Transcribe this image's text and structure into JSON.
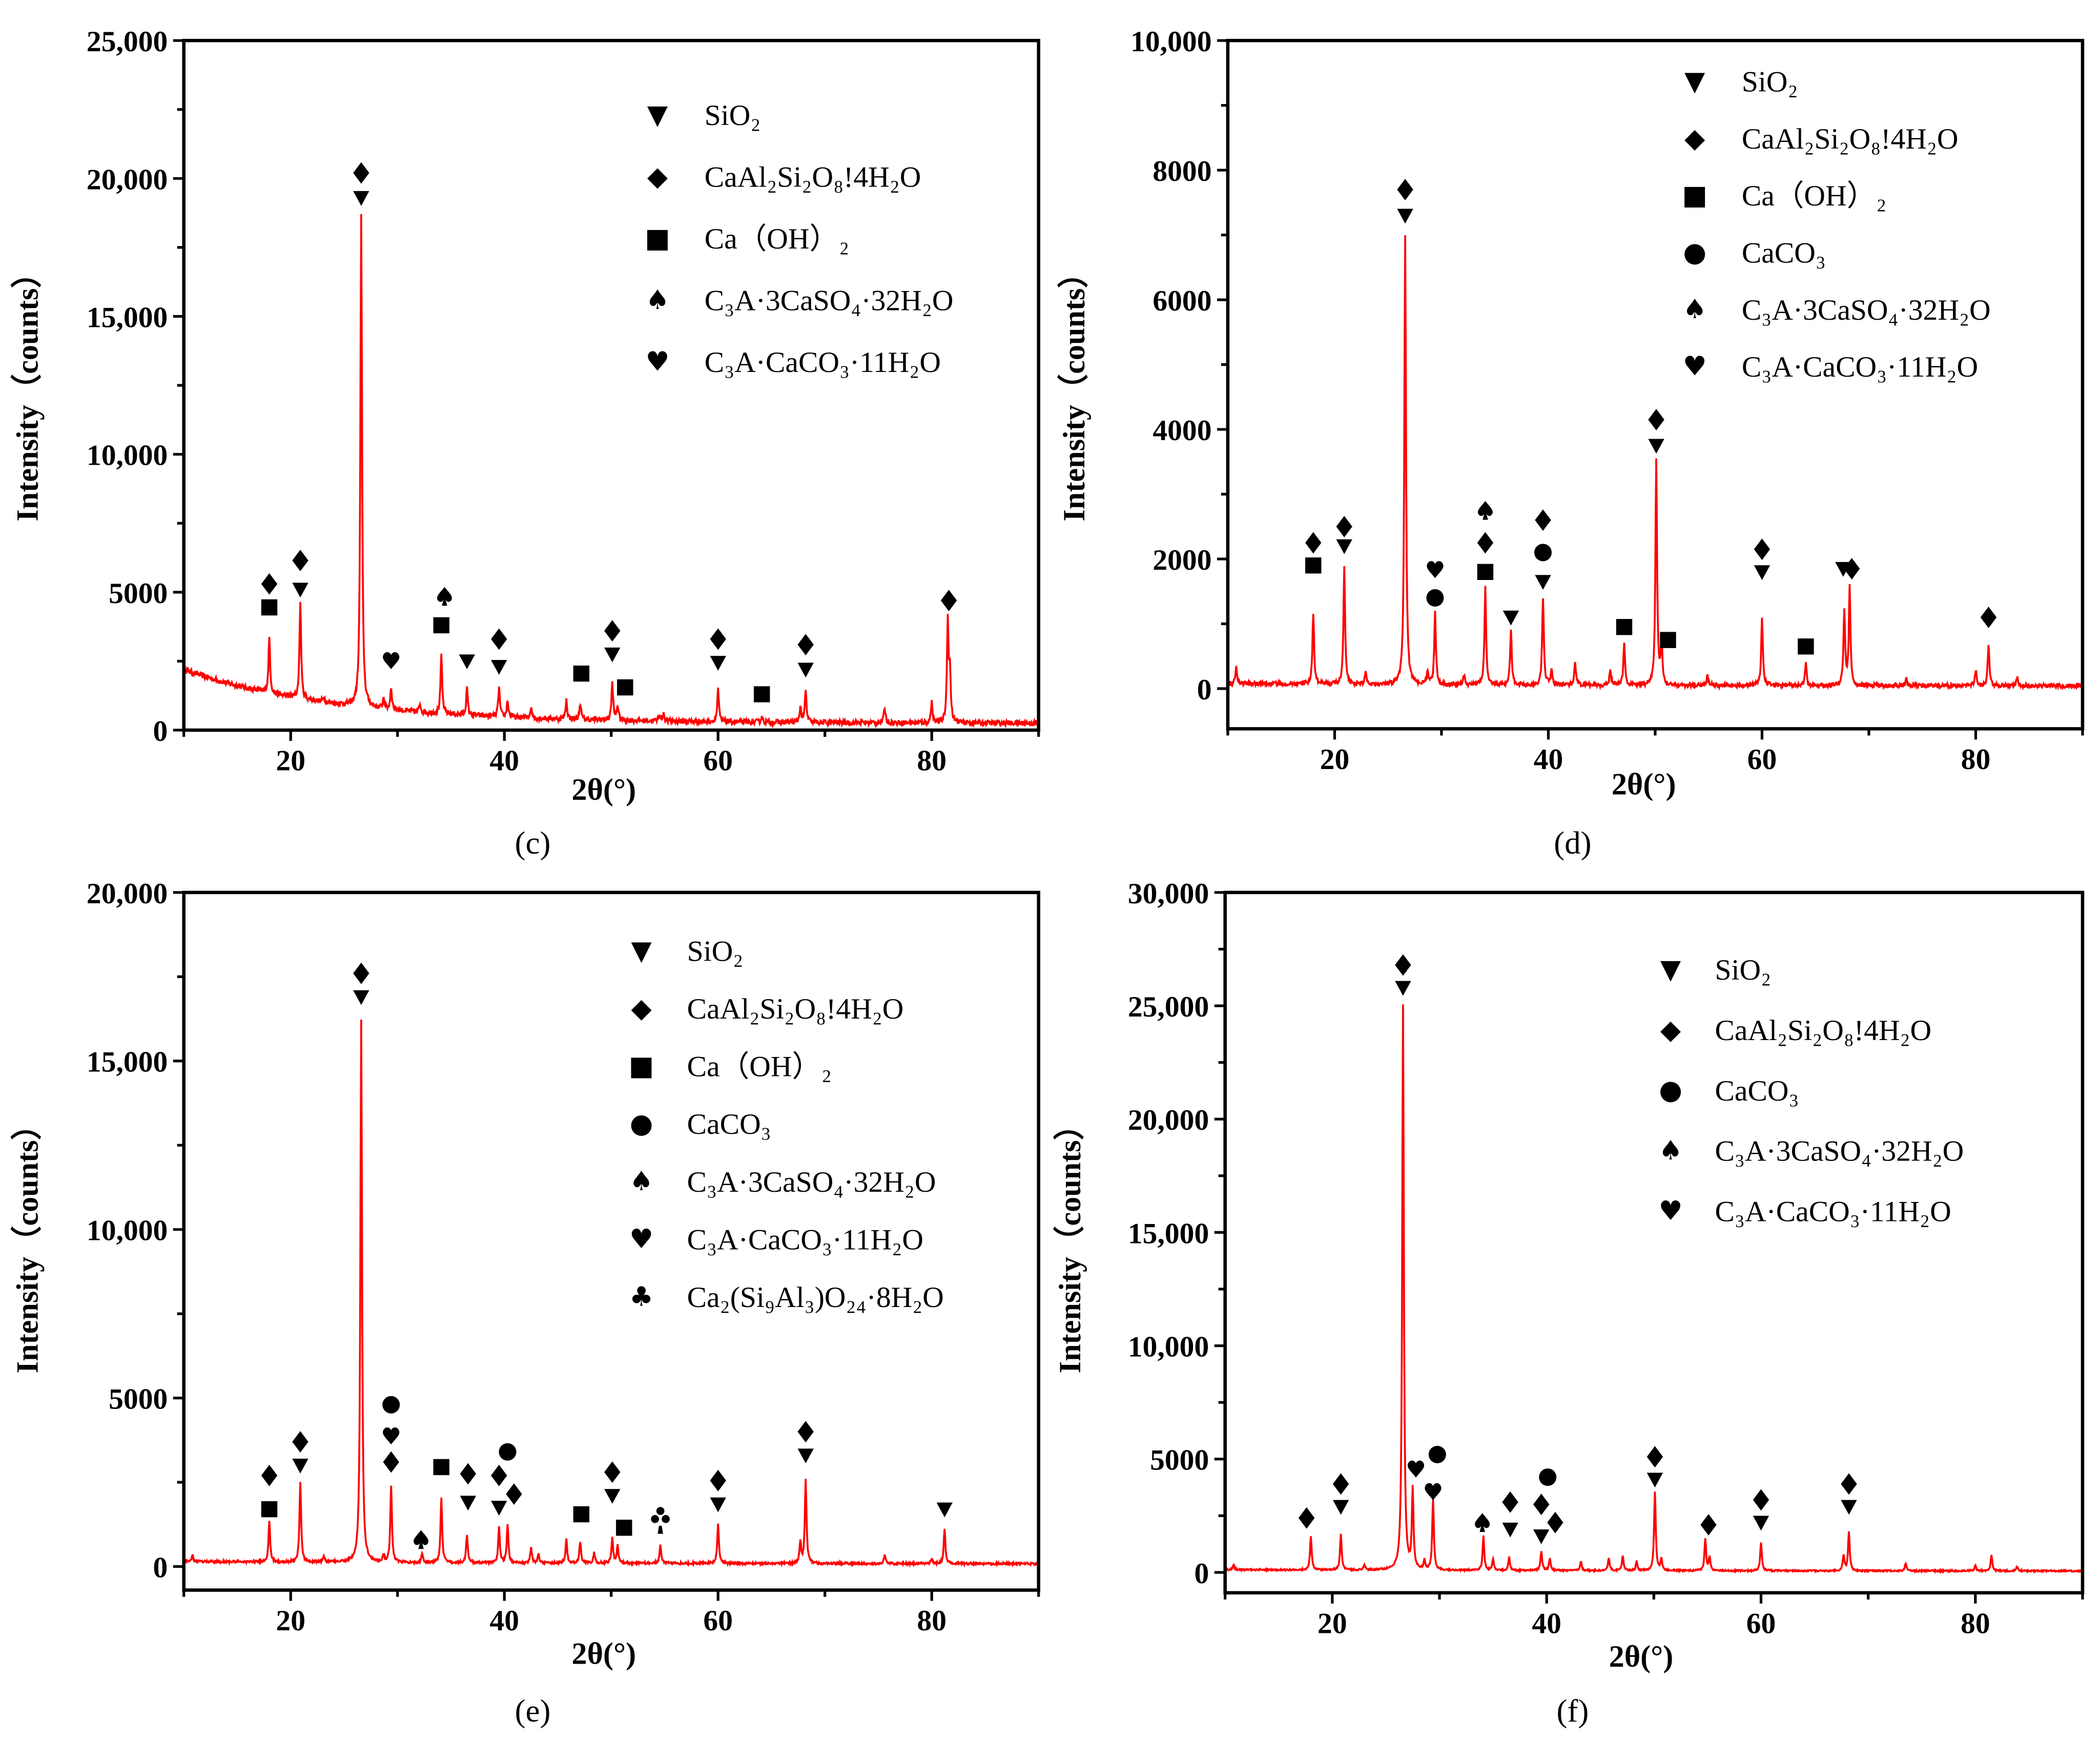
{
  "colors": {
    "line": "#ff0000",
    "axis": "#000000",
    "marker": "#000000"
  },
  "symbols": {
    "SiO2": "▼",
    "anorthite": "◆",
    "CaOH2": "■",
    "CaCO3": "●",
    "ettringite": "♠",
    "carboaluminate": "♥",
    "zeolite": "♣"
  },
  "chart_data": [
    {
      "type": "line",
      "panel_label": "(c)",
      "xlabel": "2θ(°)",
      "ylabel": "Intensity（counts）",
      "xlim": [
        10,
        90
      ],
      "ylim": [
        0,
        25000
      ],
      "xticks": [
        20,
        40,
        60,
        80
      ],
      "yticks": [
        0,
        5000,
        10000,
        15000,
        20000,
        25000
      ],
      "ytick_labels": [
        "0",
        "5000",
        "10,000",
        "15,000",
        "20,000",
        "25,000"
      ],
      "xtick_labels": [
        "20",
        "40",
        "60",
        "80"
      ],
      "baseline": {
        "start": 2200,
        "end": 250,
        "decay": 14
      },
      "peaks": [
        [
          18.0,
          2000
        ],
        [
          20.9,
          3500
        ],
        [
          23.1,
          200
        ],
        [
          26.6,
          17800
        ],
        [
          28.7,
          400
        ],
        [
          29.4,
          800
        ],
        [
          32.1,
          300
        ],
        [
          34.1,
          2100
        ],
        [
          36.5,
          950
        ],
        [
          39.5,
          1050
        ],
        [
          40.3,
          600
        ],
        [
          42.5,
          400
        ],
        [
          45.8,
          700
        ],
        [
          47.1,
          600
        ],
        [
          50.1,
          1350
        ],
        [
          50.6,
          550
        ],
        [
          54.5,
          250
        ],
        [
          54.9,
          300
        ],
        [
          60.0,
          1150
        ],
        [
          64.1,
          200
        ],
        [
          67.7,
          550
        ],
        [
          68.2,
          1150
        ],
        [
          75.6,
          550
        ],
        [
          80.0,
          750
        ],
        [
          81.5,
          3650
        ],
        [
          81.7,
          1700
        ]
      ],
      "legend": [
        {
          "symbol": "SiO2",
          "label": "SiO₂"
        },
        {
          "symbol": "anorthite",
          "label": "CaAl₂Si₂O₈!4H₂O"
        },
        {
          "symbol": "CaOH2",
          "label": "Ca（OH）₂"
        },
        {
          "symbol": "ettringite",
          "label": "C₃A·3CaSO₄·32H₂O"
        },
        {
          "symbol": "carboaluminate",
          "label": "C₃A·CaCO₃·11H₂O"
        }
      ],
      "markers": [
        [
          "anorthite",
          18,
          5300
        ],
        [
          "CaOH2",
          18,
          4450
        ],
        [
          "anorthite",
          20.9,
          6150
        ],
        [
          "SiO2",
          20.9,
          5100
        ],
        [
          "anorthite",
          26.6,
          20200
        ],
        [
          "SiO2",
          26.6,
          19300
        ],
        [
          "carboaluminate",
          29.4,
          2550
        ],
        [
          "CaOH2",
          34.1,
          3800
        ],
        [
          "ettringite",
          34.4,
          4850
        ],
        [
          "SiO2",
          36.5,
          2500
        ],
        [
          "anorthite",
          39.5,
          3300
        ],
        [
          "SiO2",
          39.5,
          2300
        ],
        [
          "CaOH2",
          47.2,
          2050
        ],
        [
          "CaOH2",
          51.3,
          1550
        ],
        [
          "anorthite",
          50.1,
          3600
        ],
        [
          "SiO2",
          50.1,
          2750
        ],
        [
          "anorthite",
          60.0,
          3300
        ],
        [
          "SiO2",
          60.0,
          2450
        ],
        [
          "CaOH2",
          64.1,
          1300
        ],
        [
          "anorthite",
          68.2,
          3100
        ],
        [
          "SiO2",
          68.2,
          2200
        ],
        [
          "anorthite",
          81.6,
          4700
        ]
      ]
    },
    {
      "type": "line",
      "panel_label": "(d)",
      "xlabel": "2θ(°)",
      "ylabel": "Intensity（counts）",
      "xlim": [
        10,
        90
      ],
      "ylim": [
        -620,
        10000
      ],
      "xticks": [
        20,
        40,
        60,
        80
      ],
      "yticks": [
        0,
        2000,
        4000,
        6000,
        8000,
        10000
      ],
      "ytick_labels": [
        "0",
        "2000",
        "4000",
        "6000",
        "8000",
        "10,000"
      ],
      "xtick_labels": [
        "20",
        "40",
        "60",
        "80"
      ],
      "baseline": {
        "start": 80,
        "end": 40,
        "decay": 30
      },
      "peaks": [
        [
          10.8,
          250
        ],
        [
          18.0,
          1100
        ],
        [
          20.9,
          1800
        ],
        [
          22.9,
          200
        ],
        [
          26.6,
          6950
        ],
        [
          28.7,
          200
        ],
        [
          29.4,
          1100
        ],
        [
          32.1,
          150
        ],
        [
          34.1,
          1500
        ],
        [
          36.5,
          850
        ],
        [
          39.5,
          1350
        ],
        [
          40.3,
          250
        ],
        [
          42.5,
          350
        ],
        [
          45.8,
          250
        ],
        [
          47.1,
          650
        ],
        [
          50.1,
          3500
        ],
        [
          50.6,
          650
        ],
        [
          54.9,
          150
        ],
        [
          60.0,
          1050
        ],
        [
          64.1,
          350
        ],
        [
          67.7,
          1150
        ],
        [
          68.2,
          1500
        ],
        [
          73.5,
          100
        ],
        [
          80.0,
          250
        ],
        [
          81.2,
          650
        ],
        [
          83.9,
          150
        ]
      ],
      "legend": [
        {
          "symbol": "SiO2",
          "label": "SiO₂"
        },
        {
          "symbol": "anorthite",
          "label": "CaAl₂Si₂O₈!4H₂O"
        },
        {
          "symbol": "CaOH2",
          "label": "Ca（OH）₂"
        },
        {
          "symbol": "CaCO3",
          "label": "CaCO₃"
        },
        {
          "symbol": "ettringite",
          "label": "C₃A·3CaSO₄·32H₂O"
        },
        {
          "symbol": "carboaluminate",
          "label": "C₃A·CaCO₃·11H₂O"
        }
      ],
      "markers": [
        [
          "anorthite",
          18,
          2250
        ],
        [
          "CaOH2",
          18,
          1900
        ],
        [
          "anorthite",
          20.9,
          2500
        ],
        [
          "SiO2",
          20.9,
          2200
        ],
        [
          "anorthite",
          26.6,
          7700
        ],
        [
          "SiO2",
          26.6,
          7300
        ],
        [
          "carboaluminate",
          29.4,
          1850
        ],
        [
          "CaCO3",
          29.4,
          1400
        ],
        [
          "ettringite",
          34.1,
          2750
        ],
        [
          "anorthite",
          34.1,
          2250
        ],
        [
          "CaOH2",
          34.1,
          1800
        ],
        [
          "SiO2",
          36.5,
          1100
        ],
        [
          "anorthite",
          39.5,
          2600
        ],
        [
          "CaCO3",
          39.5,
          2100
        ],
        [
          "SiO2",
          39.5,
          1650
        ],
        [
          "CaOH2",
          47.1,
          950
        ],
        [
          "CaOH2",
          51.2,
          750
        ],
        [
          "anorthite",
          50.1,
          4150
        ],
        [
          "SiO2",
          50.1,
          3750
        ],
        [
          "anorthite",
          60.0,
          2150
        ],
        [
          "SiO2",
          60.0,
          1800
        ],
        [
          "CaOH2",
          64.1,
          650
        ],
        [
          "SiO2",
          67.6,
          1850
        ],
        [
          "anorthite",
          68.4,
          1850
        ],
        [
          "anorthite",
          81.2,
          1100
        ]
      ]
    },
    {
      "type": "line",
      "panel_label": "(e)",
      "xlabel": "2θ(°)",
      "ylabel": "Intensity（counts）",
      "xlim": [
        10,
        90
      ],
      "ylim": [
        -700,
        20000
      ],
      "xticks": [
        20,
        40,
        60,
        80
      ],
      "yticks": [
        0,
        5000,
        10000,
        15000,
        20000
      ],
      "ytick_labels": [
        "0",
        "5000",
        "10,000",
        "15,000",
        "20,000"
      ],
      "xtick_labels": [
        "20",
        "40",
        "60",
        "80"
      ],
      "baseline": {
        "start": 150,
        "end": 80,
        "decay": 30
      },
      "peaks": [
        [
          10.8,
          200
        ],
        [
          18.0,
          1200
        ],
        [
          20.9,
          2400
        ],
        [
          23.1,
          200
        ],
        [
          26.6,
          16100
        ],
        [
          28.7,
          200
        ],
        [
          29.4,
          2250
        ],
        [
          32.3,
          250
        ],
        [
          34.1,
          1900
        ],
        [
          36.5,
          850
        ],
        [
          39.5,
          1050
        ],
        [
          40.3,
          1150
        ],
        [
          42.5,
          450
        ],
        [
          43.2,
          250
        ],
        [
          45.8,
          700
        ],
        [
          47.1,
          650
        ],
        [
          48.4,
          300
        ],
        [
          50.1,
          750
        ],
        [
          50.6,
          550
        ],
        [
          54.6,
          550
        ],
        [
          60.0,
          1150
        ],
        [
          67.7,
          650
        ],
        [
          68.2,
          2500
        ],
        [
          75.6,
          250
        ],
        [
          80.0,
          150
        ],
        [
          81.2,
          1050
        ]
      ],
      "legend": [
        {
          "symbol": "SiO2",
          "label": "SiO₂"
        },
        {
          "symbol": "anorthite",
          "label": "CaAl₂Si₂O₈!4H₂O"
        },
        {
          "symbol": "CaOH2",
          "label": "Ca（OH）₂"
        },
        {
          "symbol": "CaCO3",
          "label": "CaCO₃"
        },
        {
          "symbol": "ettringite",
          "label": "C₃A·3CaSO₄·32H₂O"
        },
        {
          "symbol": "carboaluminate",
          "label": "C₃A·CaCO₃·11H₂O"
        },
        {
          "symbol": "zeolite",
          "label": "Ca₂(Si₉Al₃)O₂₄·8H₂O"
        }
      ],
      "markers": [
        [
          "anorthite",
          18,
          2700
        ],
        [
          "CaOH2",
          18,
          1700
        ],
        [
          "anorthite",
          20.9,
          3700
        ],
        [
          "SiO2",
          20.9,
          3000
        ],
        [
          "anorthite",
          26.6,
          17600
        ],
        [
          "SiO2",
          26.6,
          16900
        ],
        [
          "CaCO3",
          29.4,
          4800
        ],
        [
          "carboaluminate",
          29.4,
          3900
        ],
        [
          "anorthite",
          29.4,
          3100
        ],
        [
          "ettringite",
          32.2,
          800
        ],
        [
          "CaOH2",
          34.1,
          2950
        ],
        [
          "anorthite",
          36.6,
          2750
        ],
        [
          "SiO2",
          36.6,
          1900
        ],
        [
          "anorthite",
          39.5,
          2700
        ],
        [
          "SiO2",
          39.5,
          1750
        ],
        [
          "CaCO3",
          40.3,
          3400
        ],
        [
          "anorthite",
          40.9,
          2150
        ],
        [
          "CaOH2",
          47.2,
          1550
        ],
        [
          "CaOH2",
          51.2,
          1150
        ],
        [
          "anorthite",
          50.1,
          2800
        ],
        [
          "SiO2",
          50.1,
          2100
        ],
        [
          "zeolite",
          54.6,
          1250
        ],
        [
          "anorthite",
          60.0,
          2550
        ],
        [
          "SiO2",
          60.0,
          1850
        ],
        [
          "anorthite",
          68.2,
          4000
        ],
        [
          "SiO2",
          68.2,
          3300
        ],
        [
          "SiO2",
          81.2,
          1700
        ]
      ]
    },
    {
      "type": "line",
      "panel_label": "(f)",
      "xlabel": "2θ(°)",
      "ylabel": "Intensity（counts）",
      "xlim": [
        10,
        90
      ],
      "ylim": [
        -900,
        30000
      ],
      "xticks": [
        20,
        40,
        60,
        80
      ],
      "yticks": [
        0,
        5000,
        10000,
        15000,
        20000,
        25000,
        30000
      ],
      "ytick_labels": [
        "0",
        "5000",
        "10,000",
        "15,000",
        "20,000",
        "25,000",
        "30,000"
      ],
      "xtick_labels": [
        "20",
        "40",
        "60",
        "80"
      ],
      "baseline": {
        "start": 120,
        "end": 60,
        "decay": 30
      },
      "peaks": [
        [
          10.8,
          200
        ],
        [
          18.0,
          1500
        ],
        [
          20.8,
          1600
        ],
        [
          23.0,
          250
        ],
        [
          26.6,
          24900
        ],
        [
          27.5,
          3500
        ],
        [
          28.6,
          400
        ],
        [
          29.4,
          3100
        ],
        [
          34.1,
          1500
        ],
        [
          35.0,
          500
        ],
        [
          36.5,
          600
        ],
        [
          39.5,
          850
        ],
        [
          40.3,
          550
        ],
        [
          43.2,
          400
        ],
        [
          45.8,
          550
        ],
        [
          47.1,
          650
        ],
        [
          48.4,
          400
        ],
        [
          50.1,
          3500
        ],
        [
          50.7,
          500
        ],
        [
          54.8,
          1400
        ],
        [
          55.2,
          600
        ],
        [
          60.0,
          1250
        ],
        [
          67.7,
          700
        ],
        [
          68.2,
          1700
        ],
        [
          73.5,
          350
        ],
        [
          80.0,
          250
        ],
        [
          81.5,
          700
        ],
        [
          83.9,
          200
        ]
      ],
      "legend": [
        {
          "symbol": "SiO2",
          "label": "SiO₂"
        },
        {
          "symbol": "anorthite",
          "label": "CaAl₂Si₂O₈!4H₂O"
        },
        {
          "symbol": "CaCO3",
          "label": "CaCO₃"
        },
        {
          "symbol": "ettringite",
          "label": "C₃A·3CaSO₄·32H₂O"
        },
        {
          "symbol": "carboaluminate",
          "label": "C₃A·CaCO₃·11H₂O"
        }
      ],
      "markers": [
        [
          "anorthite",
          17.6,
          2400
        ],
        [
          "anorthite",
          20.8,
          3900
        ],
        [
          "SiO2",
          20.8,
          2900
        ],
        [
          "anorthite",
          26.6,
          26800
        ],
        [
          "SiO2",
          26.6,
          25800
        ],
        [
          "carboaluminate",
          27.8,
          4600
        ],
        [
          "CaCO3",
          29.8,
          5200
        ],
        [
          "carboaluminate",
          29.4,
          3600
        ],
        [
          "ettringite",
          34.0,
          2200
        ],
        [
          "anorthite",
          36.6,
          3100
        ],
        [
          "SiO2",
          36.6,
          1900
        ],
        [
          "CaCO3",
          40.1,
          4200
        ],
        [
          "anorthite",
          39.5,
          3000
        ],
        [
          "SiO2",
          39.5,
          1600
        ],
        [
          "anorthite",
          40.8,
          2200
        ],
        [
          "anorthite",
          50.1,
          5100
        ],
        [
          "SiO2",
          50.1,
          4100
        ],
        [
          "anorthite",
          55.1,
          2100
        ],
        [
          "anorthite",
          60.0,
          3200
        ],
        [
          "SiO2",
          60.0,
          2200
        ],
        [
          "anorthite",
          68.2,
          3900
        ],
        [
          "SiO2",
          68.2,
          2900
        ]
      ]
    }
  ]
}
